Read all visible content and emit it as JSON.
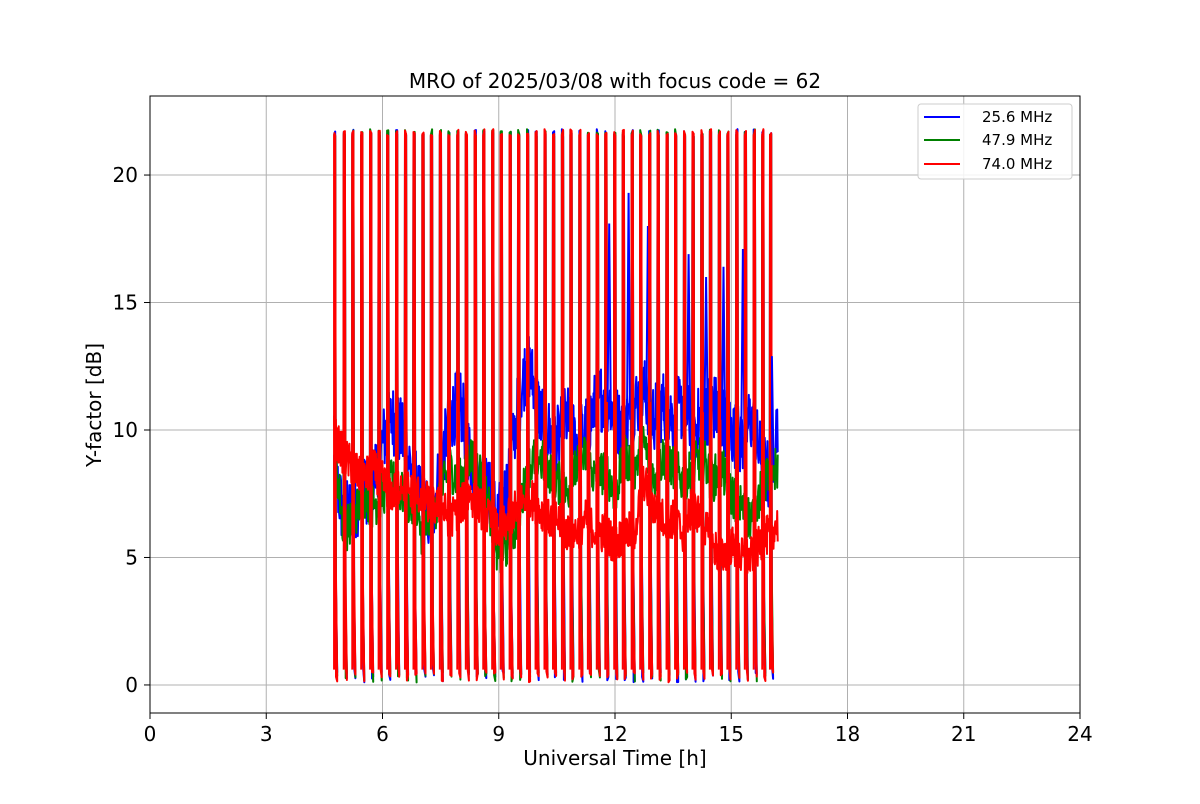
{
  "chart_data": {
    "type": "line",
    "title": "MRO of 2025/03/08 with focus code = 62",
    "xlabel": "Universal Time [h]",
    "ylabel": "Y-factor [dB]",
    "xlim": [
      0,
      24
    ],
    "ylim": [
      -1.1,
      23.1
    ],
    "xticks": [
      0,
      3,
      6,
      9,
      12,
      15,
      18,
      21,
      24
    ],
    "xtick_labels": [
      "0",
      "3",
      "6",
      "9",
      "12",
      "15",
      "18",
      "21",
      "24"
    ],
    "yticks": [
      0,
      5,
      10,
      15,
      20
    ],
    "ytick_labels": [
      "0",
      "5",
      "10",
      "15",
      "20"
    ],
    "grid": true,
    "legend_position": "top-right",
    "colors": {
      "blue": "#0000ff",
      "green": "#008000",
      "red": "#ff0000"
    },
    "series": [
      {
        "name": "25.6 MHz",
        "color": "#0000ff",
        "x": [
          4.75,
          5.0,
          5.25,
          5.5,
          5.75,
          6.0,
          6.25,
          6.5,
          6.75,
          7.0,
          7.25,
          7.5,
          7.75,
          8.0,
          8.25,
          8.5,
          8.75,
          9.0,
          9.25,
          9.5,
          9.75,
          10.0,
          10.25,
          10.5,
          10.75,
          11.0,
          11.25,
          11.5,
          11.75,
          12.0,
          12.25,
          12.5,
          12.75,
          13.0,
          13.25,
          13.5,
          13.75,
          14.0,
          14.25,
          14.5,
          14.75,
          15.0,
          15.25,
          15.5,
          15.75,
          16.0,
          16.2
        ],
        "y": [
          8.5,
          6.5,
          7.0,
          7.5,
          8.0,
          9.5,
          10.5,
          9.8,
          8.5,
          7.0,
          6.5,
          8.5,
          10.5,
          11.2,
          9.0,
          8.0,
          7.5,
          6.5,
          8.0,
          11.0,
          12.8,
          11.0,
          10.0,
          9.5,
          10.5,
          9.5,
          10.0,
          11.0,
          11.5,
          10.5,
          10.0,
          11.0,
          11.5,
          10.5,
          11.0,
          10.5,
          11.0,
          10.0,
          10.5,
          11.0,
          10.5,
          10.0,
          9.5,
          10.5,
          9.0,
          8.0,
          10.5
        ]
      },
      {
        "name": "47.9 MHz",
        "color": "#008000",
        "x": [
          4.75,
          5.0,
          5.25,
          5.5,
          5.75,
          6.0,
          6.25,
          6.5,
          6.75,
          7.0,
          7.25,
          7.5,
          7.75,
          8.0,
          8.25,
          8.5,
          8.75,
          9.0,
          9.25,
          9.5,
          9.75,
          10.0,
          10.25,
          10.5,
          10.75,
          11.0,
          11.25,
          11.5,
          11.75,
          12.0,
          12.25,
          12.5,
          12.75,
          13.0,
          13.25,
          13.5,
          13.75,
          14.0,
          14.25,
          14.5,
          14.75,
          15.0,
          15.25,
          15.5,
          15.75,
          16.0,
          16.2
        ],
        "y": [
          9.5,
          6.0,
          6.5,
          7.5,
          7.0,
          7.5,
          8.0,
          7.5,
          7.0,
          6.0,
          6.5,
          7.5,
          8.5,
          8.0,
          9.0,
          8.5,
          7.0,
          5.0,
          5.5,
          6.5,
          8.5,
          9.0,
          8.5,
          8.0,
          7.5,
          8.5,
          9.0,
          8.0,
          8.5,
          7.5,
          9.0,
          8.5,
          9.5,
          8.0,
          9.0,
          8.5,
          8.0,
          8.5,
          9.0,
          8.0,
          8.5,
          7.5,
          7.0,
          6.5,
          7.5,
          8.5,
          8.5
        ]
      },
      {
        "name": "74.0 MHz",
        "color": "#ff0000",
        "x": [
          4.75,
          5.0,
          5.25,
          5.5,
          5.75,
          6.0,
          6.25,
          6.5,
          6.75,
          7.0,
          7.25,
          7.5,
          7.75,
          8.0,
          8.25,
          8.5,
          8.75,
          9.0,
          9.25,
          9.5,
          9.75,
          10.0,
          10.25,
          10.5,
          10.75,
          11.0,
          11.25,
          11.5,
          11.75,
          12.0,
          12.25,
          12.5,
          12.75,
          13.0,
          13.25,
          13.5,
          13.75,
          14.0,
          14.25,
          14.5,
          14.75,
          15.0,
          15.25,
          15.5,
          15.75,
          16.0,
          16.2
        ],
        "y": [
          9.8,
          9.0,
          8.5,
          8.0,
          8.5,
          8.0,
          7.5,
          8.0,
          7.5,
          7.5,
          7.0,
          7.0,
          6.5,
          7.0,
          7.5,
          7.0,
          6.5,
          6.0,
          6.5,
          7.0,
          7.5,
          7.0,
          6.5,
          6.5,
          6.0,
          6.0,
          6.5,
          6.0,
          6.0,
          5.5,
          6.0,
          6.0,
          8.0,
          7.0,
          6.5,
          6.5,
          6.0,
          7.0,
          6.5,
          5.5,
          5.0,
          5.5,
          5.0,
          5.0,
          5.5,
          6.0,
          6.3
        ]
      }
    ],
    "calibration_spikes": {
      "description_color_order": [
        "blue",
        "green",
        "red"
      ],
      "top_value": 21.8,
      "bottom_value": 0.1,
      "times": [
        4.75,
        5.0,
        5.22,
        5.45,
        5.68,
        5.9,
        6.12,
        6.35,
        6.58,
        6.8,
        7.03,
        7.25,
        7.48,
        7.7,
        7.93,
        8.15,
        8.38,
        8.6,
        8.83,
        9.05,
        9.28,
        9.5,
        9.73,
        9.95,
        10.18,
        10.4,
        10.63,
        10.85,
        11.08,
        11.3,
        11.53,
        11.75,
        11.98,
        12.2,
        12.43,
        12.65,
        12.88,
        13.1,
        13.33,
        13.55,
        13.78,
        14.0,
        14.23,
        14.45,
        14.68,
        14.9,
        15.13,
        15.35,
        15.58,
        15.8,
        16.0
      ]
    },
    "blue_peaks": [
      {
        "x": 12.35,
        "y": 19.3
      },
      {
        "x": 11.85,
        "y": 18.1
      },
      {
        "x": 12.85,
        "y": 18.0
      },
      {
        "x": 13.9,
        "y": 16.9
      },
      {
        "x": 14.8,
        "y": 16.4
      },
      {
        "x": 15.3,
        "y": 17.1
      },
      {
        "x": 14.35,
        "y": 16.0
      },
      {
        "x": 16.05,
        "y": 12.9
      }
    ]
  }
}
